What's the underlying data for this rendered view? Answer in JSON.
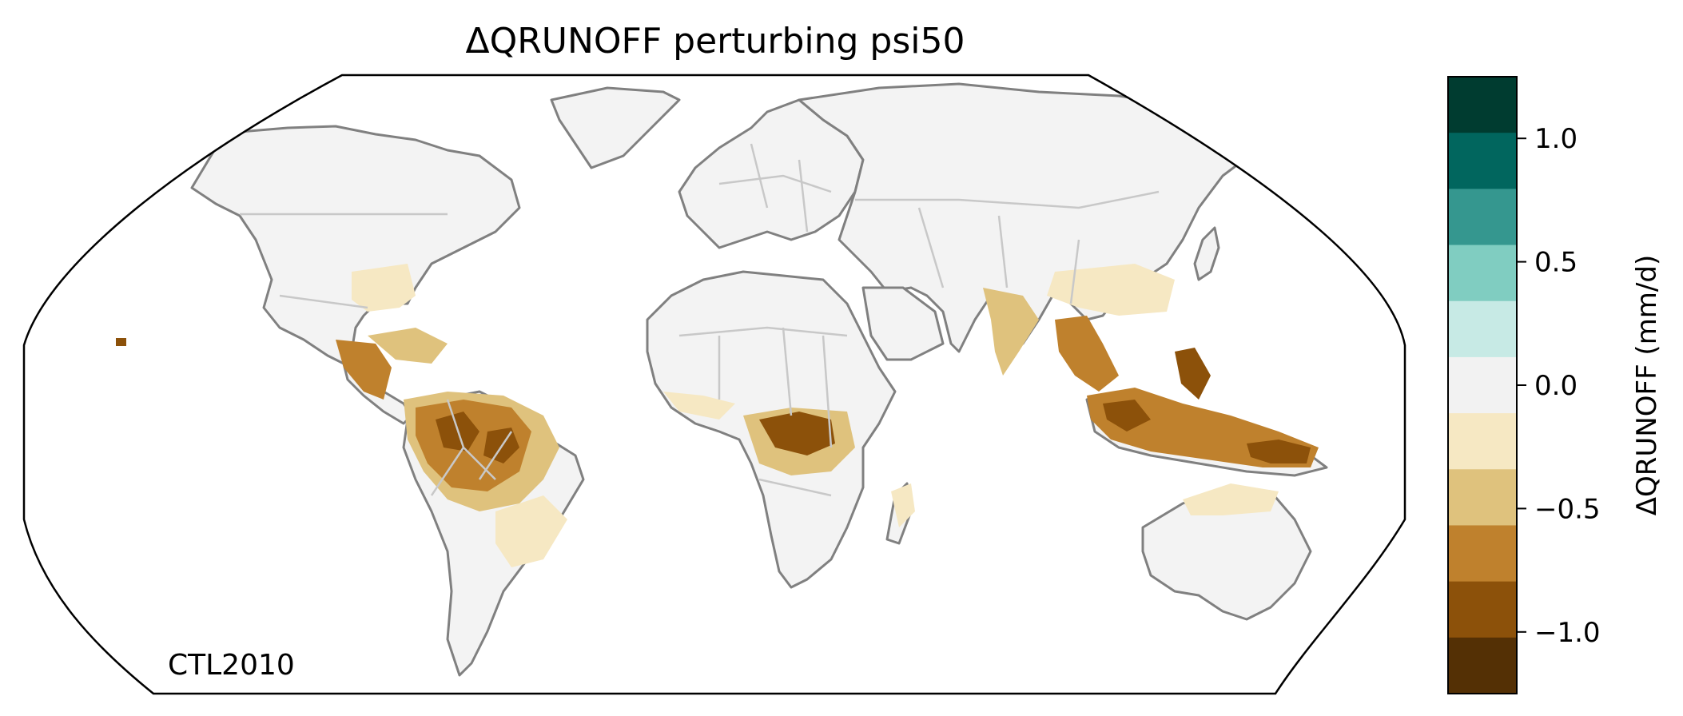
{
  "title": "ΔQRUNOFF perturbing psi50",
  "annotation": "CTL2010",
  "colorbar": {
    "label": "ΔQRUNOFF (mm/d)",
    "ticks": [
      {
        "value": 1.0,
        "label": "1.0"
      },
      {
        "value": 0.5,
        "label": "0.5"
      },
      {
        "value": 0.0,
        "label": "0.0"
      },
      {
        "value": -0.5,
        "label": "−0.5"
      },
      {
        "value": -1.0,
        "label": "−1.0"
      }
    ],
    "range": [
      -1.25,
      1.25
    ],
    "bins": [
      {
        "from": 1.0,
        "to": 1.25,
        "color": "#003c30"
      },
      {
        "from": 0.75,
        "to": 1.0,
        "color": "#01665e"
      },
      {
        "from": 0.5,
        "to": 0.75,
        "color": "#35978f"
      },
      {
        "from": 0.25,
        "to": 0.5,
        "color": "#80cdc1"
      },
      {
        "from": 0.1,
        "to": 0.25,
        "color": "#c7eae5"
      },
      {
        "from": -0.1,
        "to": 0.1,
        "color": "#f2f2f2"
      },
      {
        "from": -0.25,
        "to": -0.1,
        "color": "#f6e8c3"
      },
      {
        "from": -0.5,
        "to": -0.25,
        "color": "#dfc27d"
      },
      {
        "from": -0.75,
        "to": -0.5,
        "color": "#bf812d"
      },
      {
        "from": -1.0,
        "to": -0.75,
        "color": "#8c510a"
      },
      {
        "from": -1.25,
        "to": -1.0,
        "color": "#543005"
      }
    ]
  },
  "projection": "Robinson",
  "colors": {
    "land": "#f3f3f3",
    "coastline": "#808080",
    "borders": "#c8c8c8",
    "frame": "#000000"
  },
  "anomaly_regions": [
    {
      "region": "Amazon basin",
      "level": -0.75
    },
    {
      "region": "Central America / Caribbean",
      "level": -0.6
    },
    {
      "region": "Eastern Brazil",
      "level": -0.2
    },
    {
      "region": "Southeastern USA",
      "level": -0.2
    },
    {
      "region": "Congo basin",
      "level": -1.0
    },
    {
      "region": "West Africa coast",
      "level": -0.3
    },
    {
      "region": "Madagascar",
      "level": -0.2
    },
    {
      "region": "India / Southeast Asia",
      "level": -0.6
    },
    {
      "region": "Southern China",
      "level": -0.2
    },
    {
      "region": "Maritime Continent / Indonesia",
      "level": -0.9
    },
    {
      "region": "Northern Australia",
      "level": -0.2
    }
  ]
}
